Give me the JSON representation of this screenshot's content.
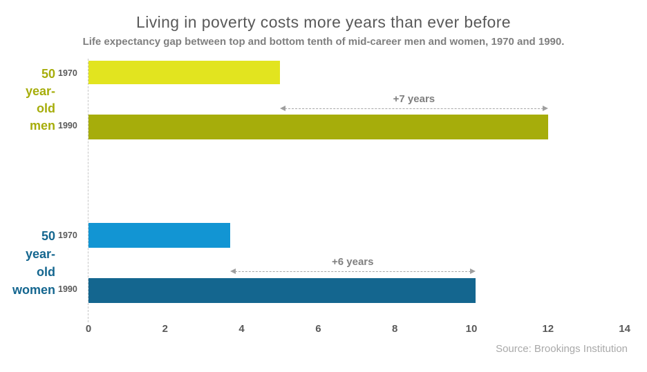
{
  "header": {
    "title": "Living in poverty costs more years than ever before",
    "subtitle": "Life expectancy gap between top and bottom tenth of mid-career men and women, 1970 and 1990."
  },
  "footer": {
    "source": "Source: Brookings Institution"
  },
  "men": {
    "label_lines": [
      "50",
      "year-",
      "old",
      "men"
    ]
  },
  "women": {
    "label_lines": [
      "50",
      "year-",
      "old",
      "women"
    ]
  },
  "colors": {
    "men_1970_bar": "#e2e41f",
    "men_1990_bar": "#a6ad0b",
    "women_1970_bar": "#1295d3",
    "women_1990_bar": "#14668f",
    "men_label": "#a6ad0b",
    "women_label": "#14668f",
    "year_label": "#595959",
    "title_text": "#595959",
    "subtitle_text": "#7f7f7f",
    "annotation_text": "#7f7f7f",
    "arrow_line": "#a6a6a6",
    "axis_line": "#c6c6c6",
    "tick_label": "#595959",
    "source_text": "#a9a9a9"
  },
  "chart_data": {
    "type": "bar",
    "orientation": "horizontal",
    "title": "Living in poverty costs more years than ever before",
    "subtitle": "Life expectancy gap between top and bottom tenth of mid-career men and women, 1970 and 1990.",
    "xlabel": "",
    "ylabel": "",
    "xlim": [
      0,
      14
    ],
    "x_ticks": [
      0,
      2,
      4,
      6,
      8,
      10,
      12,
      14
    ],
    "grid": false,
    "legend": false,
    "source": "Source: Brookings Institution",
    "series": [
      {
        "group": "50 year-old men",
        "bars": [
          {
            "label": "1970",
            "value": 5,
            "color": "#e2e41f"
          },
          {
            "label": "1990",
            "value": 12,
            "color": "#a6ad0b"
          }
        ],
        "gap_annotation": "+7 years"
      },
      {
        "group": "50 year-old women",
        "bars": [
          {
            "label": "1970",
            "value": 3.7,
            "color": "#1295d3"
          },
          {
            "label": "1990",
            "value": 10.1,
            "color": "#14668f"
          }
        ],
        "gap_annotation": "+6 years"
      }
    ]
  }
}
